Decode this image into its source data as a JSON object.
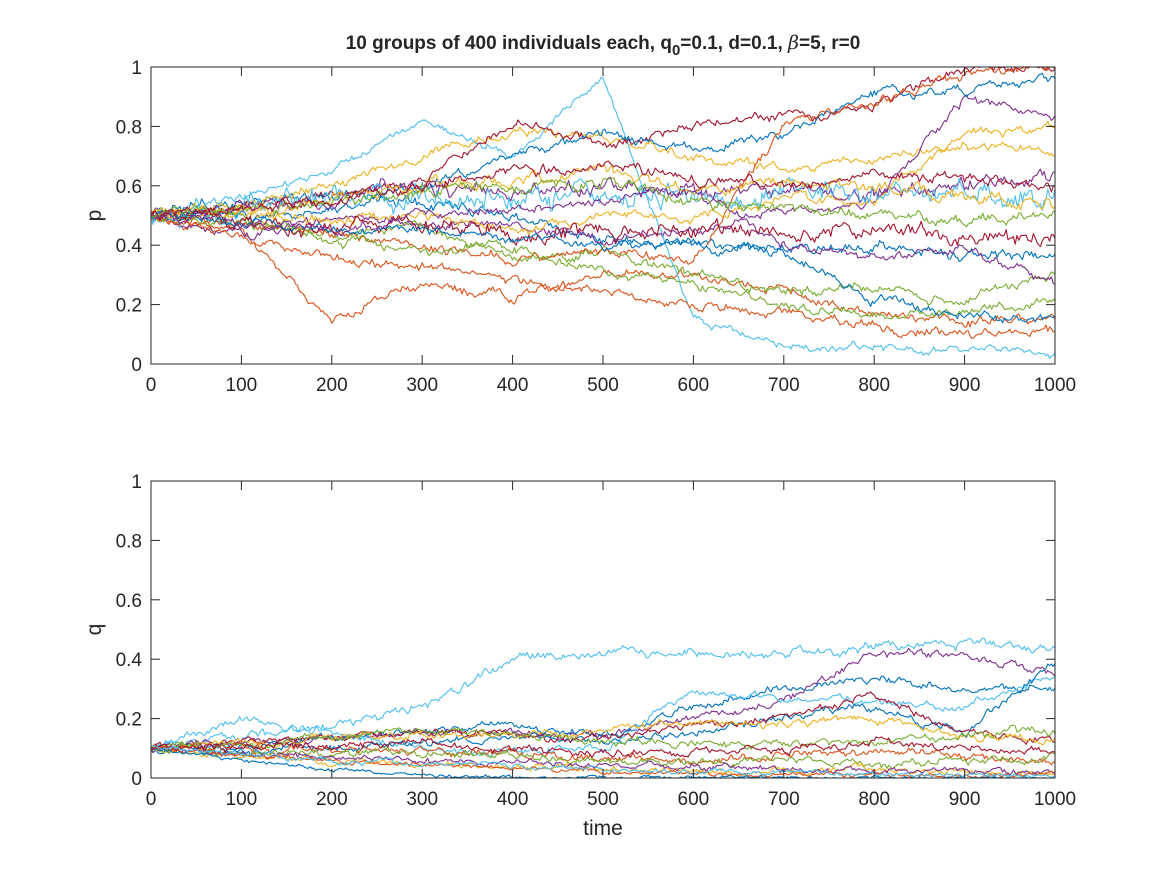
{
  "figure": {
    "title_parts": [
      "10 groups of 400 individuals each, q",
      "0",
      "=0.1, d=0.1, ",
      "β",
      "=5, r=0"
    ]
  },
  "colors": {
    "series": [
      "#0072BD",
      "#D95319",
      "#EDB120",
      "#7E2F8E",
      "#77AC30",
      "#4DBEEE",
      "#A2142F"
    ]
  },
  "chart_data": [
    {
      "type": "line",
      "title": "10 groups of 400 individuals each, q0=0.1, d=0.1, β=5, r=0",
      "xlabel": "",
      "ylabel": "p",
      "xlim": [
        0,
        1000
      ],
      "ylim": [
        0,
        1
      ],
      "xticks": [
        "0",
        "100",
        "200",
        "300",
        "400",
        "500",
        "600",
        "700",
        "800",
        "900",
        "1000"
      ],
      "yticks": [
        "0",
        "0.2",
        "0.4",
        "0.6",
        "0.8",
        "1"
      ],
      "grid": false,
      "legend": "none",
      "x": [
        0,
        100,
        200,
        300,
        400,
        500,
        600,
        700,
        800,
        900,
        1000
      ],
      "series": [
        {
          "color": "#0072BD",
          "values": [
            0.5,
            0.55,
            0.56,
            0.55,
            0.5,
            0.41,
            0.4,
            0.39,
            0.4,
            0.36,
            0.38
          ],
          "noise": 0.014
        },
        {
          "color": "#D95319",
          "values": [
            0.5,
            0.45,
            0.15,
            0.27,
            0.22,
            0.3,
            0.3,
            0.24,
            0.17,
            0.14,
            0.16
          ],
          "noise": 0.012
        },
        {
          "color": "#EDB120",
          "values": [
            0.5,
            0.53,
            0.6,
            0.7,
            0.78,
            0.76,
            0.7,
            0.66,
            0.7,
            0.74,
            0.72
          ],
          "noise": 0.012
        },
        {
          "color": "#7E2F8E",
          "values": [
            0.5,
            0.42,
            0.5,
            0.48,
            0.47,
            0.42,
            0.45,
            0.52,
            0.55,
            0.9,
            0.82
          ],
          "noise": 0.012
        },
        {
          "color": "#77AC30",
          "values": [
            0.5,
            0.47,
            0.44,
            0.47,
            0.35,
            0.38,
            0.3,
            0.25,
            0.26,
            0.22,
            0.3
          ],
          "noise": 0.012
        },
        {
          "color": "#4DBEEE",
          "values": [
            0.5,
            0.56,
            0.65,
            0.82,
            0.7,
            0.96,
            0.15,
            0.06,
            0.05,
            0.05,
            0.04
          ],
          "noise": 0.01
        },
        {
          "color": "#A2142F",
          "values": [
            0.5,
            0.52,
            0.57,
            0.62,
            0.82,
            0.74,
            0.8,
            0.83,
            0.87,
            1.0,
            1.0
          ],
          "noise": 0.012
        },
        {
          "color": "#0072BD",
          "values": [
            0.5,
            0.5,
            0.52,
            0.6,
            0.7,
            0.78,
            0.72,
            0.78,
            0.92,
            0.92,
            0.96
          ],
          "noise": 0.012
        },
        {
          "color": "#D95319",
          "values": [
            0.5,
            0.47,
            0.44,
            0.4,
            0.35,
            0.38,
            0.34,
            0.8,
            0.88,
            0.98,
            1.0
          ],
          "noise": 0.012
        },
        {
          "color": "#EDB120",
          "values": [
            0.5,
            0.5,
            0.48,
            0.5,
            0.45,
            0.5,
            0.48,
            0.55,
            0.56,
            0.78,
            0.8
          ],
          "noise": 0.012
        },
        {
          "color": "#7E2F8E",
          "values": [
            0.5,
            0.52,
            0.56,
            0.6,
            0.58,
            0.6,
            0.58,
            0.58,
            0.57,
            0.6,
            0.62
          ],
          "noise": 0.018
        },
        {
          "color": "#77AC30",
          "values": [
            0.5,
            0.49,
            0.42,
            0.38,
            0.4,
            0.3,
            0.28,
            0.2,
            0.16,
            0.18,
            0.2
          ],
          "noise": 0.012
        },
        {
          "color": "#4DBEEE",
          "values": [
            0.5,
            0.53,
            0.56,
            0.57,
            0.56,
            0.57,
            0.56,
            0.57,
            0.56,
            0.57,
            0.57
          ],
          "noise": 0.03
        },
        {
          "color": "#A2142F",
          "values": [
            0.5,
            0.47,
            0.45,
            0.46,
            0.45,
            0.44,
            0.46,
            0.44,
            0.45,
            0.44,
            0.43
          ],
          "noise": 0.02
        },
        {
          "color": "#0072BD",
          "values": [
            0.5,
            0.48,
            0.45,
            0.46,
            0.42,
            0.4,
            0.4,
            0.38,
            0.22,
            0.16,
            0.15
          ],
          "noise": 0.012
        },
        {
          "color": "#D95319",
          "values": [
            0.5,
            0.42,
            0.35,
            0.33,
            0.28,
            0.24,
            0.2,
            0.18,
            0.13,
            0.1,
            0.11
          ],
          "noise": 0.012
        },
        {
          "color": "#EDB120",
          "values": [
            0.5,
            0.52,
            0.55,
            0.6,
            0.62,
            0.65,
            0.6,
            0.62,
            0.6,
            0.55,
            0.55
          ],
          "noise": 0.015
        },
        {
          "color": "#7E2F8E",
          "values": [
            0.5,
            0.47,
            0.45,
            0.5,
            0.52,
            0.55,
            0.58,
            0.4,
            0.35,
            0.38,
            0.28
          ],
          "noise": 0.012
        },
        {
          "color": "#77AC30",
          "values": [
            0.5,
            0.52,
            0.54,
            0.58,
            0.6,
            0.62,
            0.55,
            0.52,
            0.5,
            0.48,
            0.5
          ],
          "noise": 0.014
        },
        {
          "color": "#A2142F",
          "values": [
            0.5,
            0.52,
            0.55,
            0.6,
            0.65,
            0.66,
            0.62,
            0.6,
            0.64,
            0.62,
            0.6
          ],
          "noise": 0.014
        }
      ]
    },
    {
      "type": "line",
      "title": "",
      "xlabel": "time",
      "ylabel": "q",
      "xlim": [
        0,
        1000
      ],
      "ylim": [
        0,
        1
      ],
      "xticks": [
        "0",
        "100",
        "200",
        "300",
        "400",
        "500",
        "600",
        "700",
        "800",
        "900",
        "1000"
      ],
      "yticks": [
        "0",
        "0.2",
        "0.4",
        "0.6",
        "0.8",
        "1"
      ],
      "grid": false,
      "legend": "none",
      "x": [
        0,
        100,
        200,
        300,
        400,
        500,
        600,
        700,
        800,
        900,
        1000
      ],
      "series": [
        {
          "color": "#4DBEEE",
          "values": [
            0.1,
            0.14,
            0.17,
            0.24,
            0.4,
            0.43,
            0.42,
            0.42,
            0.44,
            0.45,
            0.44
          ],
          "noise": 0.012
        },
        {
          "color": "#7E2F8E",
          "values": [
            0.1,
            0.12,
            0.14,
            0.15,
            0.16,
            0.14,
            0.2,
            0.26,
            0.42,
            0.42,
            0.34
          ],
          "noise": 0.01
        },
        {
          "color": "#0072BD",
          "values": [
            0.1,
            0.11,
            0.13,
            0.16,
            0.18,
            0.14,
            0.24,
            0.3,
            0.33,
            0.3,
            0.3
          ],
          "noise": 0.01
        },
        {
          "color": "#4DBEEE",
          "values": [
            0.1,
            0.2,
            0.15,
            0.1,
            0.08,
            0.1,
            0.3,
            0.26,
            0.26,
            0.24,
            0.34
          ],
          "noise": 0.01
        },
        {
          "color": "#0072BD",
          "values": [
            0.1,
            0.09,
            0.1,
            0.12,
            0.14,
            0.12,
            0.15,
            0.2,
            0.24,
            0.15,
            0.38
          ],
          "noise": 0.01
        },
        {
          "color": "#A2142F",
          "values": [
            0.1,
            0.12,
            0.14,
            0.16,
            0.15,
            0.12,
            0.18,
            0.2,
            0.28,
            0.15,
            0.13
          ],
          "noise": 0.01
        },
        {
          "color": "#EDB120",
          "values": [
            0.1,
            0.12,
            0.13,
            0.15,
            0.14,
            0.16,
            0.18,
            0.18,
            0.2,
            0.14,
            0.12
          ],
          "noise": 0.01
        },
        {
          "color": "#77AC30",
          "values": [
            0.1,
            0.11,
            0.14,
            0.15,
            0.15,
            0.12,
            0.12,
            0.11,
            0.12,
            0.14,
            0.16
          ],
          "noise": 0.01
        },
        {
          "color": "#D95319",
          "values": [
            0.1,
            0.1,
            0.09,
            0.1,
            0.08,
            0.07,
            0.06,
            0.08,
            0.09,
            0.07,
            0.05
          ],
          "noise": 0.01
        },
        {
          "color": "#77AC30",
          "values": [
            0.1,
            0.09,
            0.08,
            0.09,
            0.07,
            0.06,
            0.05,
            0.06,
            0.05,
            0.06,
            0.07
          ],
          "noise": 0.01
        },
        {
          "color": "#EDB120",
          "values": [
            0.1,
            0.07,
            0.05,
            0.05,
            0.04,
            0.03,
            0.02,
            0.02,
            0.03,
            0.02,
            0.02
          ],
          "noise": 0.008
        },
        {
          "color": "#7E2F8E",
          "values": [
            0.1,
            0.08,
            0.07,
            0.06,
            0.05,
            0.04,
            0.04,
            0.03,
            0.02,
            0.03,
            0.02
          ],
          "noise": 0.008
        },
        {
          "color": "#D95319",
          "values": [
            0.1,
            0.08,
            0.06,
            0.04,
            0.03,
            0.02,
            0.02,
            0.01,
            0.01,
            0.01,
            0.01
          ],
          "noise": 0.006
        },
        {
          "color": "#0072BD",
          "values": [
            0.1,
            0.06,
            0.03,
            0.01,
            0.0,
            0.0,
            0.0,
            0.0,
            0.0,
            0.0,
            0.0
          ],
          "noise": 0.005
        },
        {
          "color": "#A2142F",
          "values": [
            0.1,
            0.1,
            0.11,
            0.12,
            0.1,
            0.08,
            0.09,
            0.1,
            0.12,
            0.1,
            0.09
          ],
          "noise": 0.01
        },
        {
          "color": "#4DBEEE",
          "values": [
            0.1,
            0.08,
            0.06,
            0.05,
            0.04,
            0.03,
            0.02,
            0.02,
            0.01,
            0.01,
            0.01
          ],
          "noise": 0.006
        }
      ]
    }
  ]
}
